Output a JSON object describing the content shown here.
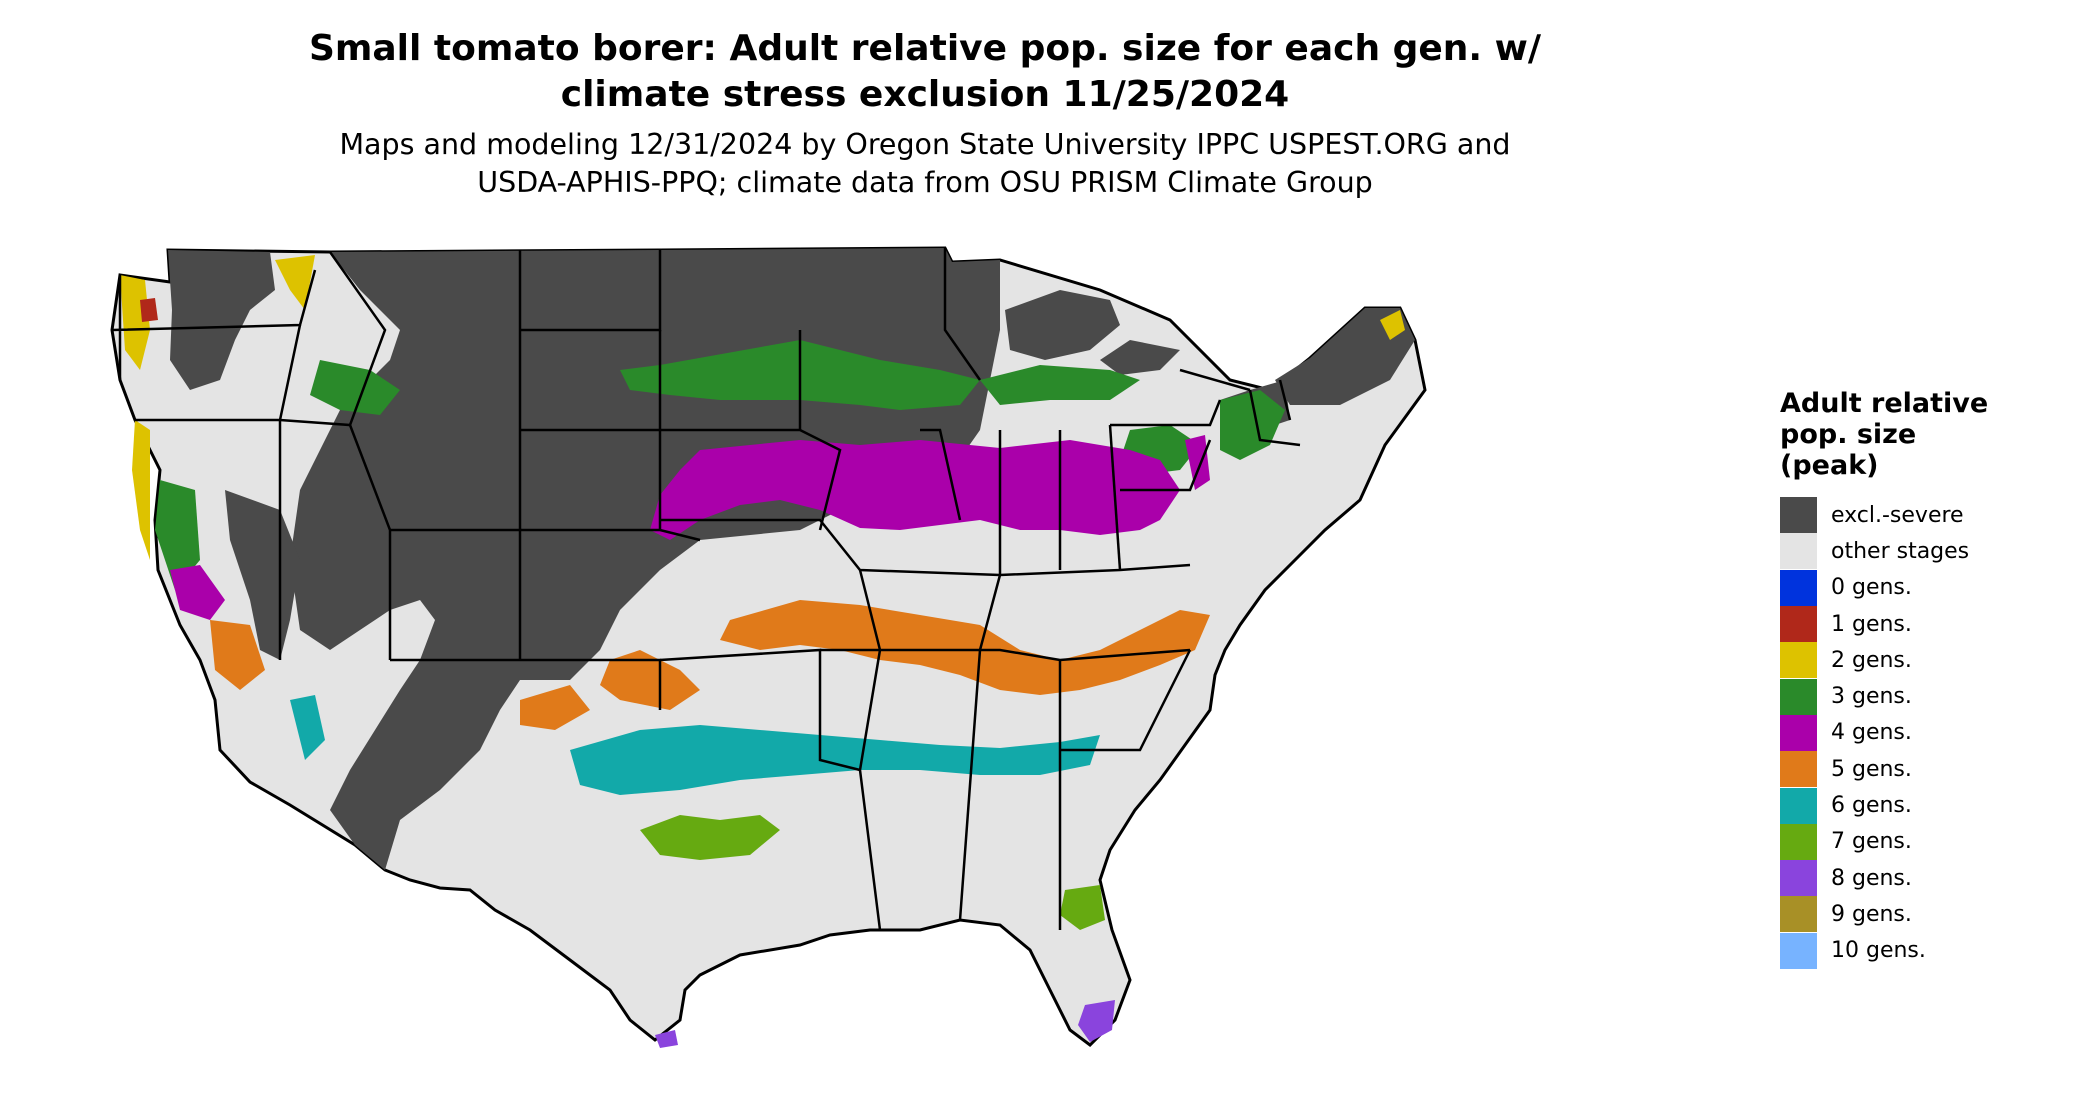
{
  "title_line1": "Small tomato borer: Adult relative pop. size for each gen. w/",
  "title_line2": "climate stress exclusion 11/25/2024",
  "subtitle_line1": "Maps and modeling 12/31/2024 by Oregon State University IPPC USPEST.ORG and",
  "subtitle_line2": "USDA-APHIS-PPQ; climate data from OSU PRISM Climate Group",
  "legend": {
    "title_line1": "Adult relative",
    "title_line2": "pop. size",
    "title_line3": "(peak)",
    "items": [
      {
        "label": "excl.-severe",
        "color": "#4a4a4a"
      },
      {
        "label": "other stages",
        "color": "#e4e4e4"
      },
      {
        "label": "0 gens.",
        "color": "#0033dd"
      },
      {
        "label": "1 gens.",
        "color": "#b0281a"
      },
      {
        "label": "2 gens.",
        "color": "#ddc200"
      },
      {
        "label": "3 gens.",
        "color": "#2a8a2a"
      },
      {
        "label": "4 gens.",
        "color": "#aa00aa"
      },
      {
        "label": "5 gens.",
        "color": "#e07a1a"
      },
      {
        "label": "6 gens.",
        "color": "#12a9a9"
      },
      {
        "label": "7 gens.",
        "color": "#66aa11"
      },
      {
        "label": "8 gens.",
        "color": "#8a44dd"
      },
      {
        "label": "9 gens.",
        "color": "#a89026"
      },
      {
        "label": "10 gens.",
        "color": "#77b3ff"
      }
    ]
  }
}
